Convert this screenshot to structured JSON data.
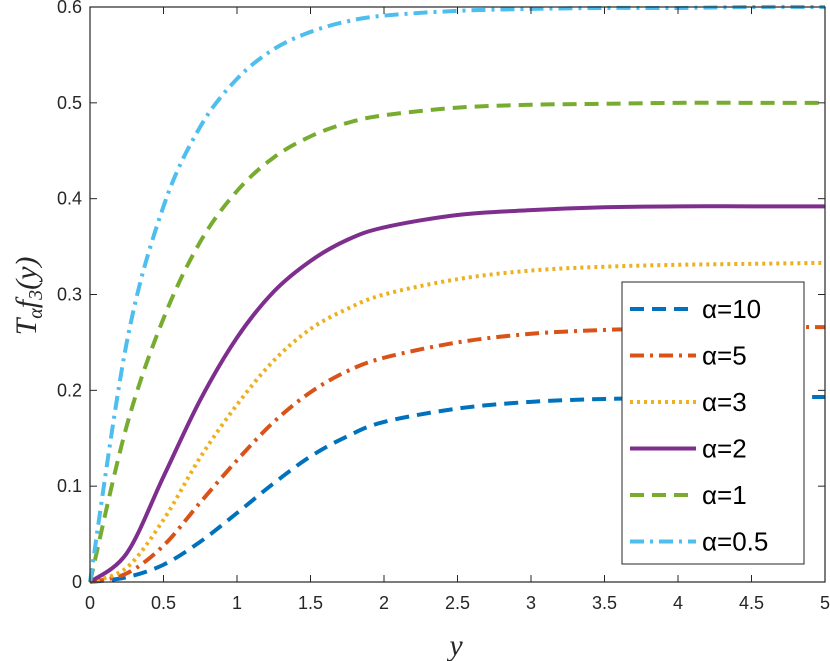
{
  "chart_data": {
    "type": "line",
    "xlabel": "y",
    "ylabel": "Tαf3(y)",
    "xlim": [
      0,
      5
    ],
    "ylim": [
      0,
      0.6
    ],
    "x_ticks": [
      "0",
      "0.5",
      "1",
      "1.5",
      "2",
      "2.5",
      "3",
      "3.5",
      "4",
      "4.5",
      "5"
    ],
    "y_ticks": [
      "0",
      "0.1",
      "0.2",
      "0.3",
      "0.4",
      "0.5",
      "0.6"
    ],
    "grid": false,
    "legend_position": "bottom-right",
    "x": [
      0,
      0.25,
      0.5,
      0.75,
      1,
      1.25,
      1.5,
      1.75,
      2,
      2.5,
      3,
      3.5,
      4,
      4.5,
      5
    ],
    "series": [
      {
        "name": "α=10",
        "color": "#0072BD",
        "style": "dashed",
        "values": [
          0,
          0.005,
          0.018,
          0.042,
          0.072,
          0.103,
          0.131,
          0.152,
          0.167,
          0.181,
          0.188,
          0.191,
          0.192,
          0.193,
          0.193
        ]
      },
      {
        "name": "α=5",
        "color": "#D95319",
        "style": "dashdot",
        "values": [
          0,
          0.009,
          0.038,
          0.083,
          0.127,
          0.167,
          0.198,
          0.22,
          0.234,
          0.25,
          0.259,
          0.263,
          0.265,
          0.266,
          0.266
        ]
      },
      {
        "name": "α=3",
        "color": "#EDB120",
        "style": "dotted",
        "values": [
          0,
          0.015,
          0.065,
          0.13,
          0.185,
          0.231,
          0.264,
          0.285,
          0.3,
          0.316,
          0.325,
          0.329,
          0.331,
          0.332,
          0.333
        ]
      },
      {
        "name": "α=2",
        "color": "#7E2F8E",
        "style": "solid",
        "values": [
          0,
          0.03,
          0.11,
          0.19,
          0.255,
          0.303,
          0.335,
          0.357,
          0.37,
          0.383,
          0.388,
          0.391,
          0.392,
          0.392,
          0.392
        ]
      },
      {
        "name": "α=1",
        "color": "#77AC30",
        "style": "dashed",
        "values": [
          0,
          0.163,
          0.275,
          0.355,
          0.408,
          0.443,
          0.465,
          0.479,
          0.487,
          0.495,
          0.498,
          0.499,
          0.5,
          0.5,
          0.5
        ]
      },
      {
        "name": "α=0.5",
        "color": "#4DBEEE",
        "style": "dashdot",
        "values": [
          0,
          0.25,
          0.392,
          0.475,
          0.525,
          0.556,
          0.574,
          0.585,
          0.591,
          0.596,
          0.598,
          0.599,
          0.599,
          0.6,
          0.6
        ]
      }
    ]
  }
}
